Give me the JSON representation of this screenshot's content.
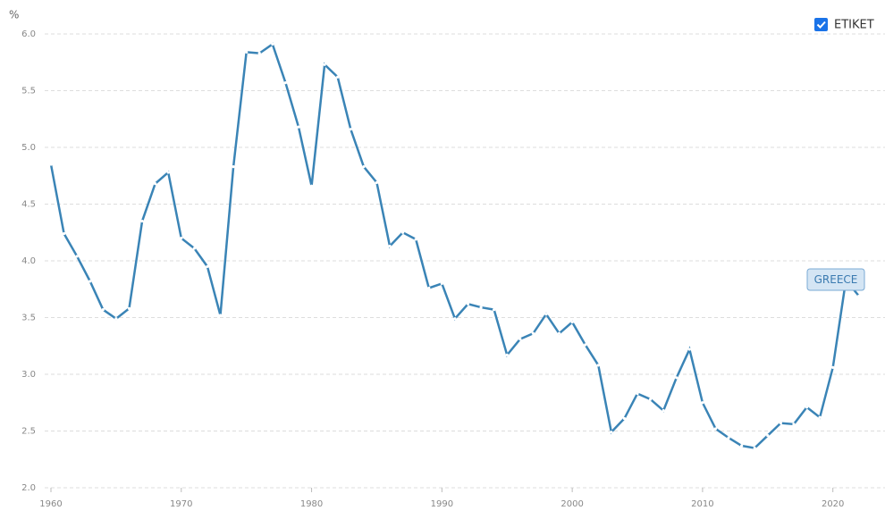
{
  "chart_data": {
    "type": "line",
    "y_unit": "%",
    "checkbox_label": "ETIKET",
    "x": [
      1960,
      1961,
      1962,
      1963,
      1964,
      1965,
      1966,
      1967,
      1968,
      1969,
      1970,
      1971,
      1972,
      1973,
      1974,
      1975,
      1976,
      1977,
      1978,
      1979,
      1980,
      1981,
      1982,
      1983,
      1984,
      1985,
      1986,
      1987,
      1988,
      1989,
      1990,
      1991,
      1992,
      1993,
      1994,
      1995,
      1996,
      1997,
      1998,
      1999,
      2000,
      2001,
      2002,
      2003,
      2004,
      2005,
      2006,
      2007,
      2008,
      2009,
      2010,
      2011,
      2012,
      2013,
      2014,
      2015,
      2016,
      2017,
      2018,
      2019,
      2020,
      2021,
      2022
    ],
    "series": [
      {
        "name": "GREECE",
        "color": "#3a84b6",
        "values": [
          4.85,
          4.24,
          4.04,
          3.82,
          3.57,
          3.49,
          3.58,
          4.35,
          4.68,
          4.78,
          4.2,
          4.11,
          3.95,
          3.52,
          4.83,
          5.84,
          5.83,
          5.91,
          5.57,
          5.18,
          4.66,
          5.73,
          5.62,
          5.16,
          4.83,
          4.69,
          4.13,
          4.25,
          4.19,
          3.76,
          3.8,
          3.49,
          3.62,
          3.59,
          3.57,
          3.17,
          3.31,
          3.36,
          3.53,
          3.36,
          3.46,
          3.26,
          3.08,
          2.49,
          2.61,
          2.83,
          2.78,
          2.68,
          2.97,
          3.22,
          2.75,
          2.52,
          2.44,
          2.37,
          2.35,
          2.46,
          2.57,
          2.56,
          2.71,
          2.62,
          3.06,
          3.83,
          3.69
        ]
      }
    ],
    "xlim": [
      1960,
      2024
    ],
    "xticks": [
      1960,
      1970,
      1980,
      1990,
      2000,
      2010,
      2020
    ],
    "ylim": [
      2,
      6
    ],
    "yticks": [
      {
        "value": 2,
        "label": "2.0"
      },
      2.5,
      {
        "value": 3,
        "label": "3.0"
      },
      3.5,
      {
        "value": 4,
        "label": "4.0"
      },
      4.5,
      {
        "value": 5,
        "label": "5.0"
      },
      5.5,
      {
        "value": 6,
        "label": "6.0"
      }
    ],
    "grid": true
  }
}
